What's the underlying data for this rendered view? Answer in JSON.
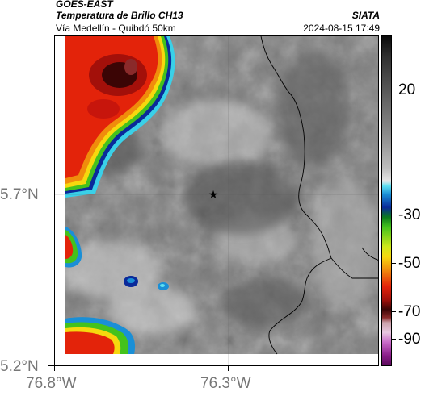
{
  "header": {
    "satellite": "GOES-EAST",
    "product": "Temperatura de Brillo CH13",
    "subtitle": "Vía Medellín - Quibdó 50km",
    "organization": "SIATA",
    "timestamp": "2024-08-15 17:49"
  },
  "axes": {
    "lat_labels": [
      "5.7°N",
      "5.2°N"
    ],
    "lon_labels": [
      "76.8°W",
      "76.3°W"
    ]
  },
  "colorbar": {
    "tick_labels": [
      "20",
      "-30",
      "-50",
      "-70",
      "-90"
    ],
    "colors": {
      "warm_surface": "#7a7a7a",
      "cold_top": "#e3230a",
      "coldest": "#5a0a5a"
    }
  },
  "map": {
    "marker_icon": "star-icon",
    "layers": [
      "brightness-temperature",
      "department-borders",
      "graticule"
    ]
  }
}
